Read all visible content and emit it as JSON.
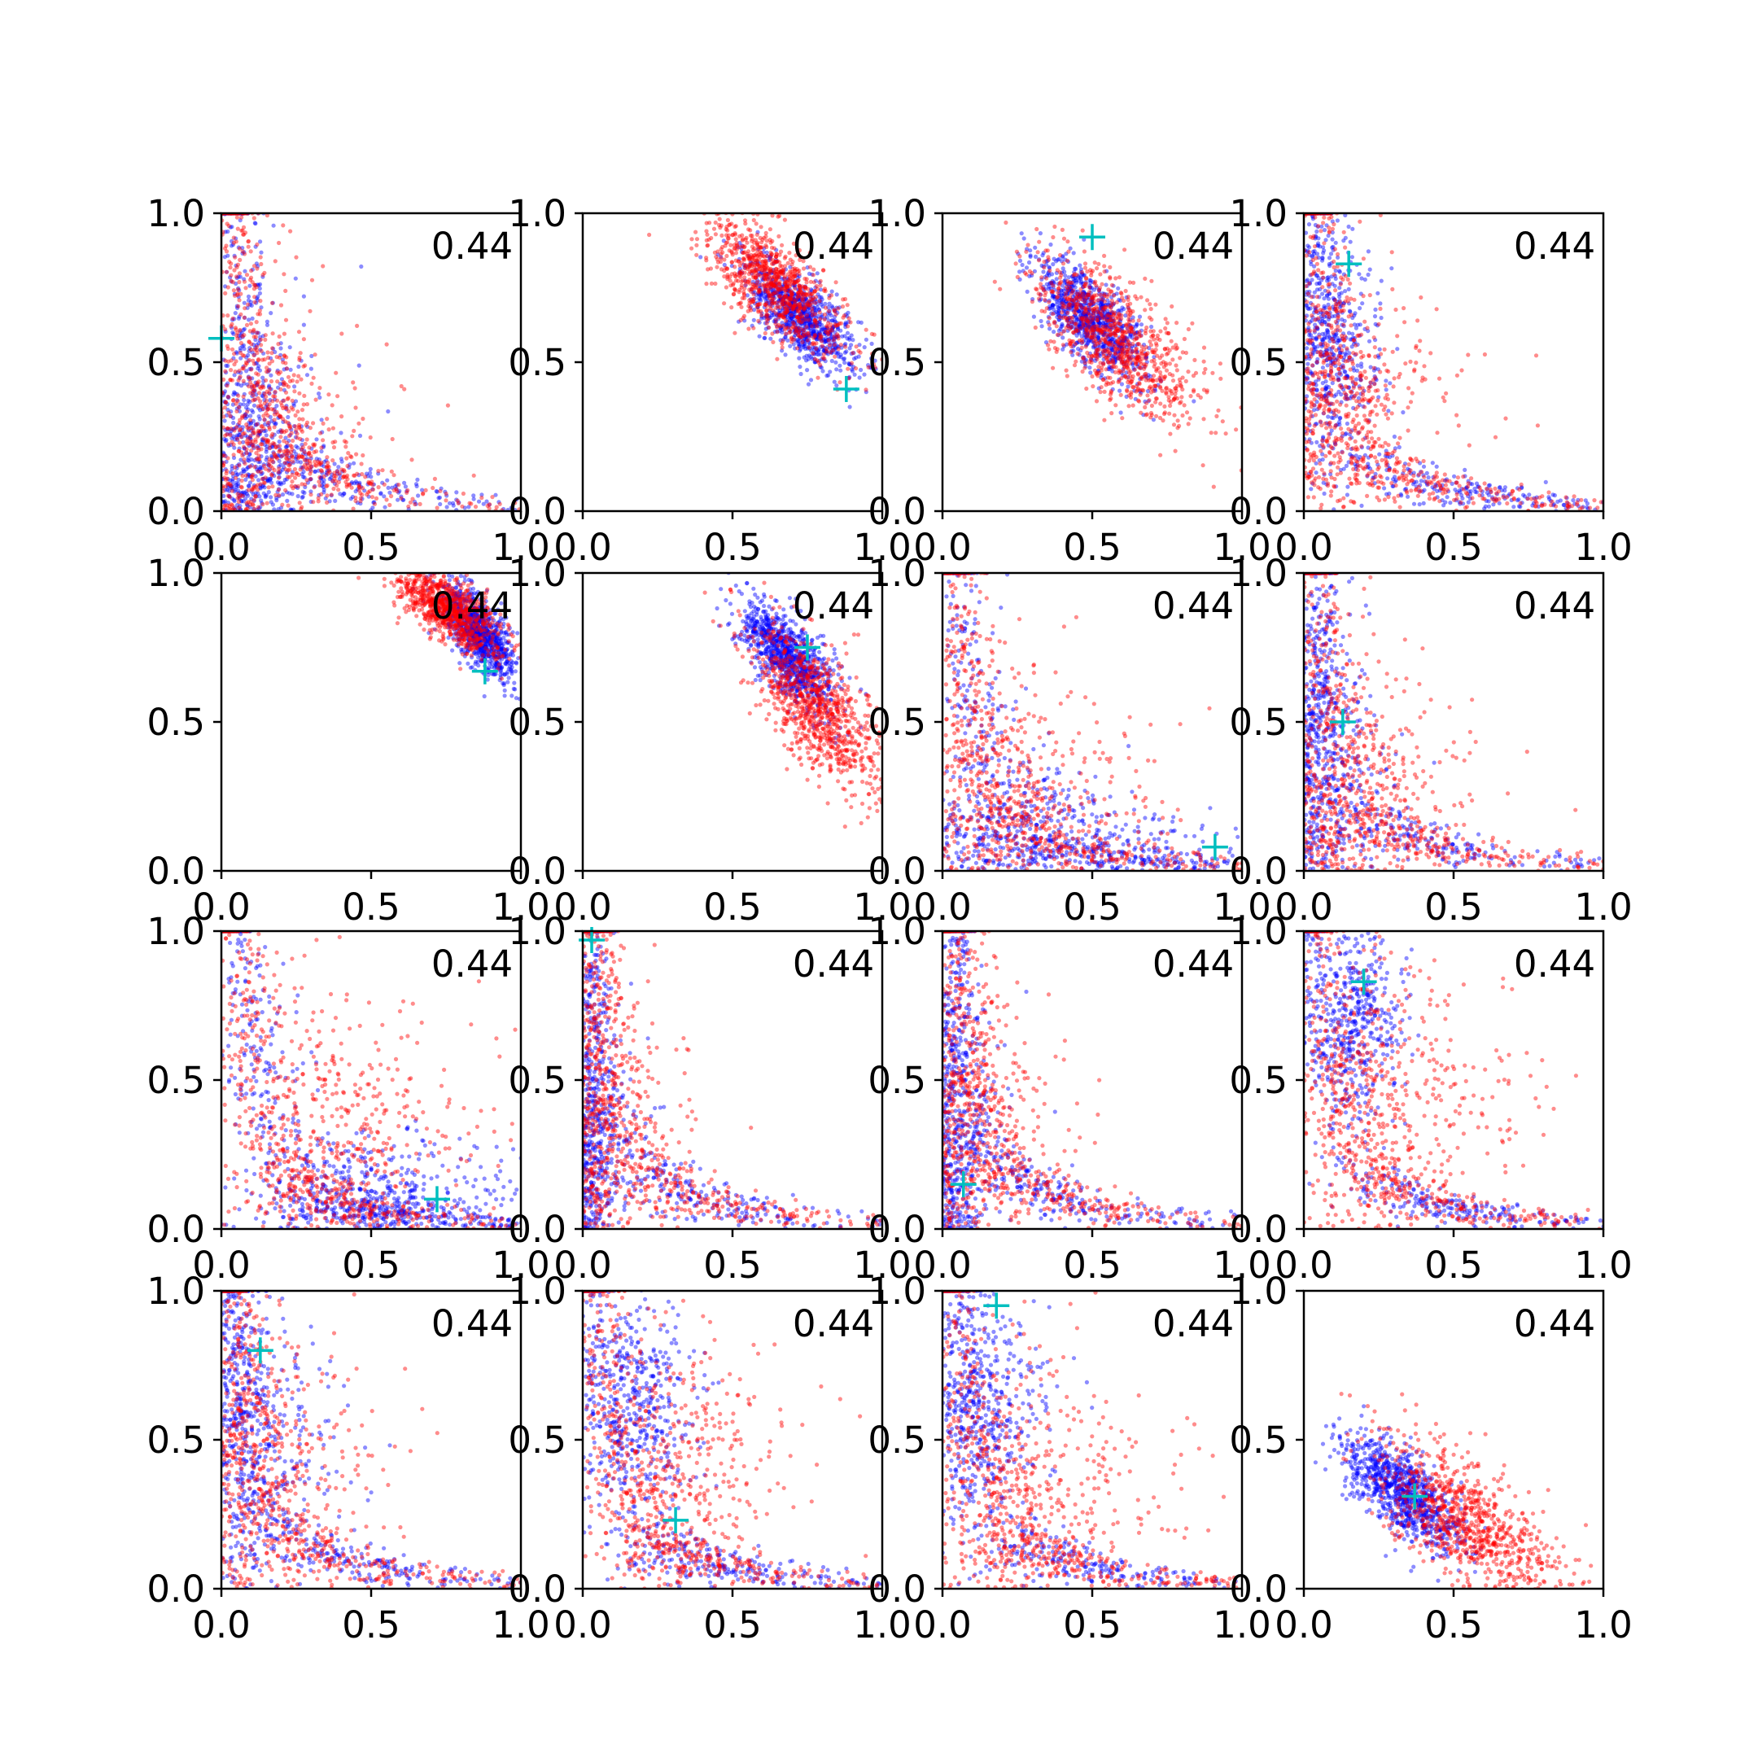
{
  "figure": {
    "title": "",
    "panel_label": "0.44",
    "rows": 4,
    "cols": 4
  },
  "colors": {
    "series_red": "#ff0000",
    "series_blue": "#0000ff",
    "marker": "#00bfbf",
    "axes": "#000000",
    "background": "#ffffff"
  },
  "chart_data": {
    "type": "scatter",
    "title": "",
    "xlabel": "",
    "ylabel": "",
    "xlim": [
      0,
      1
    ],
    "ylim": [
      0,
      1
    ],
    "x_ticks": [
      "0.0",
      "0.5",
      "1.0"
    ],
    "y_ticks": [
      "0.0",
      "0.5",
      "1.0"
    ],
    "grid": false,
    "legend": "none",
    "series": [
      {
        "color": "blue",
        "approx_points_per_panel": 1500
      },
      {
        "color": "red",
        "approx_points_per_panel": 1500
      }
    ],
    "panels": [
      {
        "label": "0.44",
        "shape": "L",
        "marker": [
          0.0,
          0.58
        ],
        "blue": {
          "cx": 0.04,
          "cy": 0.05,
          "ax": 0.18,
          "ay": 0.35
        },
        "red": {
          "cx": 0.1,
          "cy": 0.12,
          "ax": 0.25,
          "ay": 0.45
        }
      },
      {
        "label": "0.44",
        "shape": "diag",
        "marker": [
          0.88,
          0.41
        ],
        "blue": {
          "cx": 0.73,
          "cy": 0.65,
          "ax": 0.12,
          "ay": 0.12
        },
        "red": {
          "cx": 0.65,
          "cy": 0.75,
          "ax": 0.15,
          "ay": 0.15
        }
      },
      {
        "label": "0.44",
        "shape": "diag",
        "marker": [
          0.5,
          0.92
        ],
        "blue": {
          "cx": 0.5,
          "cy": 0.64,
          "ax": 0.12,
          "ay": 0.13
        },
        "red": {
          "cx": 0.58,
          "cy": 0.58,
          "ax": 0.18,
          "ay": 0.18
        }
      },
      {
        "label": "0.44",
        "shape": "L",
        "marker": [
          0.15,
          0.83
        ],
        "blue": {
          "cx": 0.12,
          "cy": 0.55,
          "ax": 0.08,
          "ay": 0.25
        },
        "red": {
          "cx": 0.15,
          "cy": 0.35,
          "ax": 0.22,
          "ay": 0.28
        }
      },
      {
        "label": "0.44",
        "shape": "diag",
        "marker": [
          0.88,
          0.67
        ],
        "blue": {
          "cx": 0.86,
          "cy": 0.8,
          "ax": 0.08,
          "ay": 0.1
        },
        "red": {
          "cx": 0.76,
          "cy": 0.88,
          "ax": 0.12,
          "ay": 0.1
        }
      },
      {
        "label": "0.44",
        "shape": "diag",
        "marker": [
          0.75,
          0.75
        ],
        "blue": {
          "cx": 0.68,
          "cy": 0.72,
          "ax": 0.1,
          "ay": 0.12
        },
        "red": {
          "cx": 0.78,
          "cy": 0.55,
          "ax": 0.15,
          "ay": 0.18
        }
      },
      {
        "label": "0.44",
        "shape": "L",
        "marker": [
          0.91,
          0.08
        ],
        "blue": {
          "cx": 0.4,
          "cy": 0.12,
          "ax": 0.3,
          "ay": 0.12
        },
        "red": {
          "cx": 0.3,
          "cy": 0.25,
          "ax": 0.25,
          "ay": 0.25
        }
      },
      {
        "label": "0.44",
        "shape": "L",
        "marker": [
          0.13,
          0.5
        ],
        "blue": {
          "cx": 0.08,
          "cy": 0.35,
          "ax": 0.12,
          "ay": 0.3
        },
        "red": {
          "cx": 0.18,
          "cy": 0.28,
          "ax": 0.22,
          "ay": 0.28
        }
      },
      {
        "label": "0.44",
        "shape": "L",
        "marker": [
          0.72,
          0.1
        ],
        "blue": {
          "cx": 0.6,
          "cy": 0.12,
          "ax": 0.28,
          "ay": 0.12
        },
        "red": {
          "cx": 0.45,
          "cy": 0.35,
          "ax": 0.25,
          "ay": 0.28
        }
      },
      {
        "label": "0.44",
        "shape": "L",
        "marker": [
          0.03,
          0.97
        ],
        "blue": {
          "cx": 0.05,
          "cy": 0.3,
          "ax": 0.08,
          "ay": 0.35
        },
        "red": {
          "cx": 0.1,
          "cy": 0.35,
          "ax": 0.15,
          "ay": 0.35
        }
      },
      {
        "label": "0.44",
        "shape": "L",
        "marker": [
          0.07,
          0.15
        ],
        "blue": {
          "cx": 0.05,
          "cy": 0.3,
          "ax": 0.1,
          "ay": 0.35
        },
        "red": {
          "cx": 0.1,
          "cy": 0.35,
          "ax": 0.18,
          "ay": 0.35
        }
      },
      {
        "label": "0.44",
        "shape": "L",
        "marker": [
          0.2,
          0.83
        ],
        "blue": {
          "cx": 0.2,
          "cy": 0.7,
          "ax": 0.08,
          "ay": 0.22
        },
        "red": {
          "cx": 0.35,
          "cy": 0.4,
          "ax": 0.25,
          "ay": 0.3
        }
      },
      {
        "label": "0.44",
        "shape": "L",
        "marker": [
          0.13,
          0.8
        ],
        "blue": {
          "cx": 0.15,
          "cy": 0.5,
          "ax": 0.12,
          "ay": 0.3
        },
        "red": {
          "cx": 0.18,
          "cy": 0.4,
          "ax": 0.2,
          "ay": 0.3
        }
      },
      {
        "label": "0.44",
        "shape": "L",
        "marker": [
          0.31,
          0.23
        ],
        "blue": {
          "cx": 0.22,
          "cy": 0.6,
          "ax": 0.1,
          "ay": 0.25
        },
        "red": {
          "cx": 0.35,
          "cy": 0.4,
          "ax": 0.18,
          "ay": 0.28
        }
      },
      {
        "label": "0.44",
        "shape": "L",
        "marker": [
          0.18,
          0.95
        ],
        "blue": {
          "cx": 0.18,
          "cy": 0.6,
          "ax": 0.1,
          "ay": 0.25
        },
        "red": {
          "cx": 0.35,
          "cy": 0.3,
          "ax": 0.25,
          "ay": 0.3
        }
      },
      {
        "label": "0.44",
        "shape": "diag",
        "marker": [
          0.37,
          0.31
        ],
        "blue": {
          "cx": 0.33,
          "cy": 0.32,
          "ax": 0.13,
          "ay": 0.13
        },
        "red": {
          "cx": 0.55,
          "cy": 0.22,
          "ax": 0.2,
          "ay": 0.18
        }
      }
    ]
  }
}
